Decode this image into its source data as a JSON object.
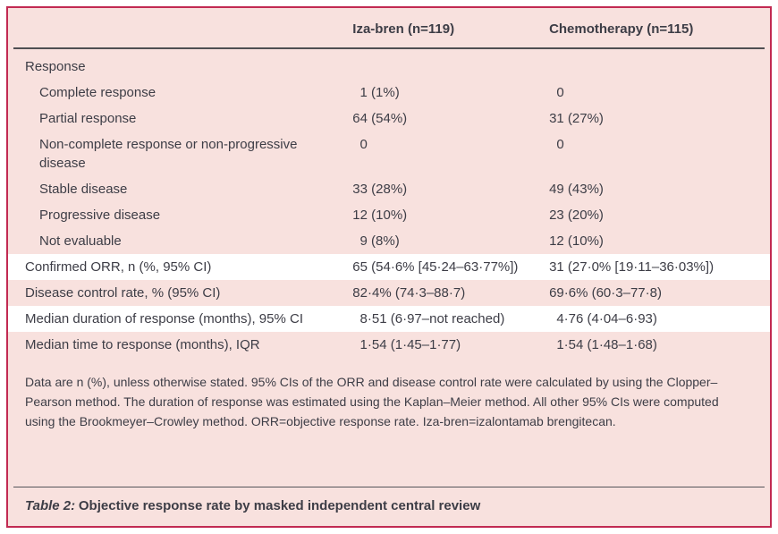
{
  "colors": {
    "border": "#c22a52",
    "background": "#f8e1de",
    "highlight_row": "#ffffff",
    "text": "#3d3d46",
    "header_rule": "#4f4f52",
    "caption_rule": "#55555a"
  },
  "table": {
    "columns": [
      "",
      "Iza-bren (n=119)",
      "Chemotherapy (n=115)"
    ],
    "rows": [
      {
        "label": "Response",
        "indent": 0,
        "values": [
          "",
          ""
        ],
        "highlight": false
      },
      {
        "label": "Complete response",
        "indent": 1,
        "values": [
          "1 (1%)",
          "0"
        ],
        "highlight": false
      },
      {
        "label": "Partial response",
        "indent": 1,
        "values": [
          "64 (54%)",
          "31 (27%)"
        ],
        "highlight": false
      },
      {
        "label": "Non-complete response or non-progressive disease",
        "indent": 1,
        "values": [
          "0",
          "0"
        ],
        "highlight": false
      },
      {
        "label": "Stable disease",
        "indent": 1,
        "values": [
          "33 (28%)",
          "49 (43%)"
        ],
        "highlight": false
      },
      {
        "label": "Progressive disease",
        "indent": 1,
        "values": [
          "12 (10%)",
          "23 (20%)"
        ],
        "highlight": false
      },
      {
        "label": "Not evaluable",
        "indent": 1,
        "values": [
          "9 (8%)",
          "12 (10%)"
        ],
        "highlight": false
      },
      {
        "label": "Confirmed ORR, n (%, 95% CI)",
        "indent": 0,
        "values": [
          "65 (54·6% [45·24–63·77%])",
          "31 (27·0% [19·11–36·03%])"
        ],
        "highlight": true
      },
      {
        "label": "Disease control rate, % (95% CI)",
        "indent": 0,
        "values": [
          "82·4% (74·3–88·7)",
          "69·6% (60·3–77·8)"
        ],
        "highlight": false
      },
      {
        "label": "Median duration of response (months), 95% CI",
        "indent": 0,
        "values": [
          "8·51 (6·97–not reached)",
          "4·76 (4·04–6·93)"
        ],
        "highlight": true
      },
      {
        "label": "Median time to response (months), IQR",
        "indent": 0,
        "values": [
          "1·54 (1·45–1·77)",
          "1·54 (1·48–1·68)"
        ],
        "highlight": false
      }
    ],
    "footnote": "Data are n (%), unless otherwise stated. 95% CIs of the ORR and disease control rate were calculated by using the Clopper–Pearson method. The duration of response was estimated using the Kaplan–Meier method. All other 95% CIs were computed using the Brookmeyer–Crowley method. ORR=objective response rate. Iza-bren=izalontamab brengitecan.",
    "caption_label": "Table 2:",
    "caption_text": "Objective response rate by masked independent central review"
  }
}
